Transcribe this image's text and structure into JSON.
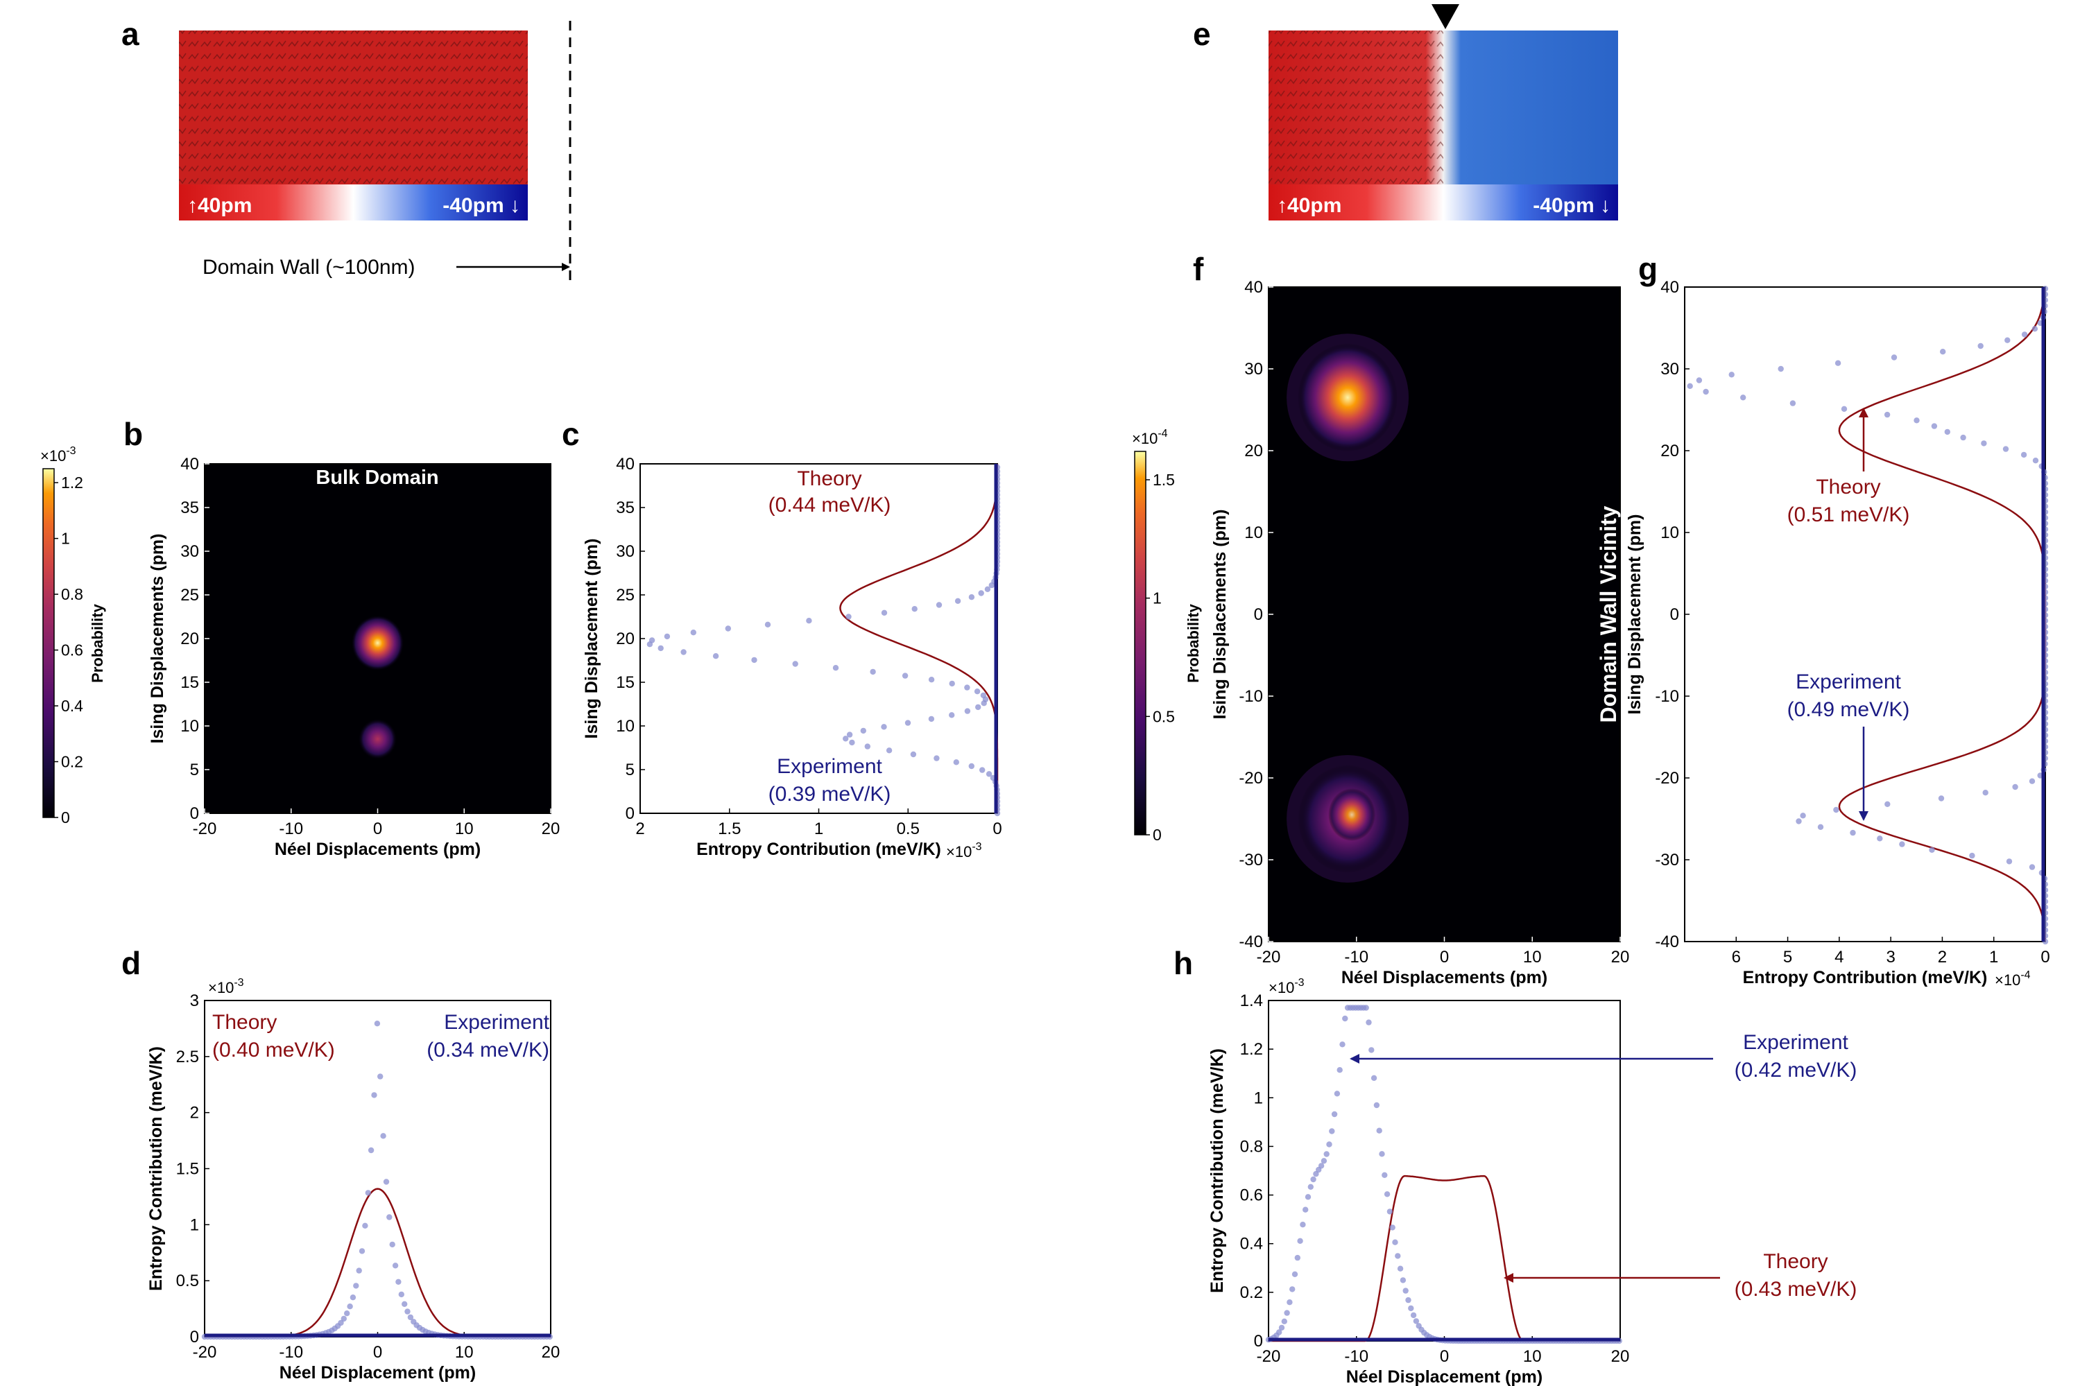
{
  "panel_labels": {
    "a": "a",
    "b": "b",
    "c": "c",
    "d": "d",
    "e": "e",
    "f": "f",
    "g": "g",
    "h": "h"
  },
  "colors": {
    "red": "#c8141c",
    "blue": "#1450b4",
    "dark_blue": "#14148c",
    "theory": "#8b0d10",
    "experiment": "#1c1c84",
    "experiment_marker": "#8a8fd0"
  },
  "panel_a": {
    "scale_left": "↑40pm",
    "scale_right": "-40pm ↓",
    "annotation": "Domain Wall (~100nm)"
  },
  "panel_e": {
    "scale_left": "↑40pm",
    "scale_right": "-40pm ↓"
  },
  "colorbar_b": {
    "exponent": "×10",
    "exponent_power": "-3",
    "label": "Probability",
    "ticks": [
      "1.2",
      "1",
      "0.8",
      "0.6",
      "0.4",
      "0.2",
      "0"
    ],
    "tick_values": [
      1.2,
      1,
      0.8,
      0.6,
      0.4,
      0.2,
      0
    ],
    "max": 1.25
  },
  "colorbar_f": {
    "exponent": "×10",
    "exponent_power": "-4",
    "label": "Probability",
    "ticks": [
      "1.5",
      "1",
      "0.5",
      "0"
    ],
    "tick_values": [
      1.5,
      1,
      0.5,
      0
    ],
    "max": 1.62
  },
  "chart_data": [
    {
      "panel": "b",
      "type": "heatmap",
      "title": "Bulk Domain",
      "xlabel": "Néel Displacements (pm)",
      "ylabel": "Ising Displacements (pm)",
      "xlim": [
        -20,
        20
      ],
      "ylim": [
        0,
        40
      ],
      "xticks": [
        -20,
        -10,
        0,
        10,
        20
      ],
      "yticks": [
        0,
        5,
        10,
        15,
        20,
        25,
        30,
        35,
        40
      ],
      "blobs": [
        {
          "x": 0,
          "y": 19.5,
          "peak": 1.2
        },
        {
          "x": 0,
          "y": 8.5,
          "peak": 0.5
        }
      ]
    },
    {
      "panel": "c",
      "type": "line",
      "xlabel": "Entropy Contribution (meV/K)",
      "ylabel": "Ising Displacement (pm)",
      "x_exponent": "×10",
      "x_exponent_power": "-3",
      "xlim": [
        2,
        0
      ],
      "ylim": [
        0,
        40
      ],
      "xticks": [
        2,
        1.5,
        1,
        0.5,
        0
      ],
      "yticks": [
        0,
        5,
        10,
        15,
        20,
        25,
        30,
        35,
        40
      ],
      "theory_label": "Theory",
      "theory_value": "(0.44 meV/K)",
      "experiment_label": "Experiment",
      "experiment_value": "(0.39 meV/K)",
      "series": [
        {
          "name": "Theory",
          "center": 23.5,
          "sigma": 4.2,
          "peak": 0.88
        },
        {
          "name": "Experiment",
          "peaks": [
            {
              "y": 19.5,
              "peak": 1.95
            },
            {
              "y": 8.6,
              "peak": 0.85
            }
          ]
        }
      ]
    },
    {
      "panel": "d",
      "type": "line",
      "xlabel": "Néel Displacement (pm)",
      "ylabel": "Entropy Contribution (meV/K)",
      "y_exponent": "×10",
      "y_exponent_power": "-3",
      "xlim": [
        -20,
        20
      ],
      "ylim": [
        0,
        3
      ],
      "xticks": [
        -20,
        -10,
        0,
        10,
        20
      ],
      "yticks": [
        0,
        0.5,
        1,
        1.5,
        2,
        2.5,
        3
      ],
      "theory_label": "Theory",
      "theory_value": "(0.40 meV/K)",
      "experiment_label": "Experiment",
      "experiment_value": "(0.34 meV/K)",
      "series": [
        {
          "name": "Theory",
          "center": 0,
          "sigma": 3.3,
          "peak": 1.32
        },
        {
          "name": "Experiment",
          "center": 0,
          "peak": 2.9
        }
      ]
    },
    {
      "panel": "f",
      "type": "heatmap",
      "title": "Domain Wall Vicinity",
      "xlabel": "Néel Displacements (pm)",
      "ylabel": "Ising Displacements (pm)",
      "xlim": [
        -20,
        20
      ],
      "ylim": [
        -40,
        40
      ],
      "xticks": [
        -20,
        -10,
        0,
        10,
        20
      ],
      "yticks": [
        -40,
        -30,
        -20,
        -10,
        0,
        10,
        20,
        30,
        40
      ],
      "blobs": [
        {
          "x": -11,
          "y": 26.5,
          "peak": 1.5
        },
        {
          "x": -11,
          "y": -25,
          "peak": 1.1
        }
      ]
    },
    {
      "panel": "g",
      "type": "line",
      "xlabel": "Entropy Contribution (meV/K)",
      "ylabel": "Ising Displacement (pm)",
      "x_exponent": "×10",
      "x_exponent_power": "-4",
      "xlim": [
        7,
        0
      ],
      "ylim": [
        -40,
        40
      ],
      "xticks": [
        6,
        5,
        4,
        3,
        2,
        1,
        0
      ],
      "yticks": [
        -40,
        -30,
        -20,
        -10,
        0,
        10,
        20,
        30,
        40
      ],
      "theory_label": "Theory",
      "theory_value": "(0.51 meV/K)",
      "experiment_label": "Experiment",
      "experiment_value": "(0.49 meV/K)",
      "series": [
        {
          "name": "Theory",
          "peaks": [
            {
              "y": 22,
              "peak": 4.0
            },
            {
              "y": -23,
              "peak": 4.0
            }
          ]
        },
        {
          "name": "Experiment",
          "peaks": [
            {
              "y": 28,
              "peak": 6.9
            },
            {
              "y": -25,
              "peak": 4.8
            }
          ]
        }
      ]
    },
    {
      "panel": "h",
      "type": "line",
      "xlabel": "Néel Displacement (pm)",
      "ylabel": "Entropy Contribution (meV/K)",
      "y_exponent": "×10",
      "y_exponent_power": "-3",
      "xlim": [
        -20,
        20
      ],
      "ylim": [
        0,
        1.4
      ],
      "xticks": [
        -20,
        -10,
        0,
        10,
        20
      ],
      "yticks": [
        0,
        0.2,
        0.4,
        0.6,
        0.8,
        1,
        1.2,
        1.4
      ],
      "theory_label": "Theory",
      "theory_value": "(0.43 meV/K)",
      "experiment_label": "Experiment",
      "experiment_value": "(0.42 meV/K)",
      "series": [
        {
          "name": "Theory",
          "plateau": [
            -3,
            3
          ],
          "peak": 0.68
        },
        {
          "name": "Experiment",
          "peak_x": -10,
          "peak": 1.37
        }
      ]
    }
  ]
}
